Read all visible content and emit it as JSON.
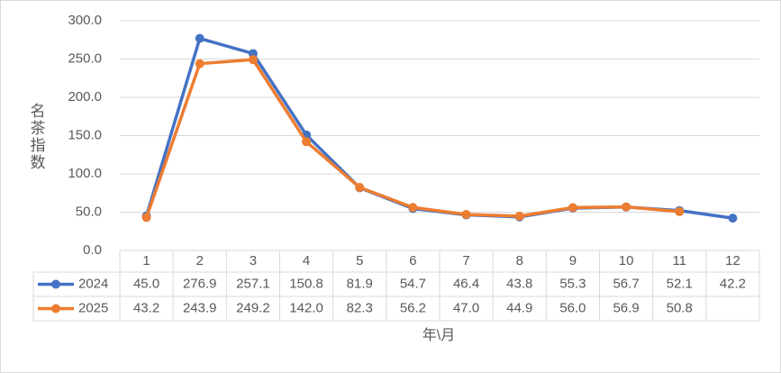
{
  "chart_data": {
    "type": "line",
    "y_axis_label": "名茶指数",
    "x_axis_label": "年\\月",
    "categories": [
      "1",
      "2",
      "3",
      "4",
      "5",
      "6",
      "7",
      "8",
      "9",
      "10",
      "11",
      "12"
    ],
    "series": [
      {
        "name": "2024",
        "color": "#4472c4",
        "values": [
          45.0,
          276.9,
          257.1,
          150.8,
          81.9,
          54.7,
          46.4,
          43.8,
          55.3,
          56.7,
          52.1,
          42.2
        ],
        "value_labels": [
          "45.0",
          "276.9",
          "257.1",
          "150.8",
          "81.9",
          "54.7",
          "46.4",
          "43.8",
          "55.3",
          "56.7",
          "52.1",
          "42.2"
        ]
      },
      {
        "name": "2025",
        "color": "#ed7d31",
        "values": [
          43.2,
          243.9,
          249.2,
          142.0,
          82.3,
          56.2,
          47.0,
          44.9,
          56.0,
          56.9,
          50.8,
          null
        ],
        "value_labels": [
          "43.2",
          "243.9",
          "249.2",
          "142.0",
          "82.3",
          "56.2",
          "47.0",
          "44.9",
          "56.0",
          "56.9",
          "50.8",
          null
        ]
      }
    ],
    "ylim": [
      0,
      300
    ],
    "yticks": [
      {
        "value": 0,
        "label": "0.0"
      },
      {
        "value": 50,
        "label": "50.0"
      },
      {
        "value": 100,
        "label": "100.0"
      },
      {
        "value": 150,
        "label": "150.0"
      },
      {
        "value": 200,
        "label": "200.0"
      },
      {
        "value": 250,
        "label": "250.0"
      },
      {
        "value": 300,
        "label": "300.0"
      }
    ],
    "grid": true,
    "data_table": true
  }
}
